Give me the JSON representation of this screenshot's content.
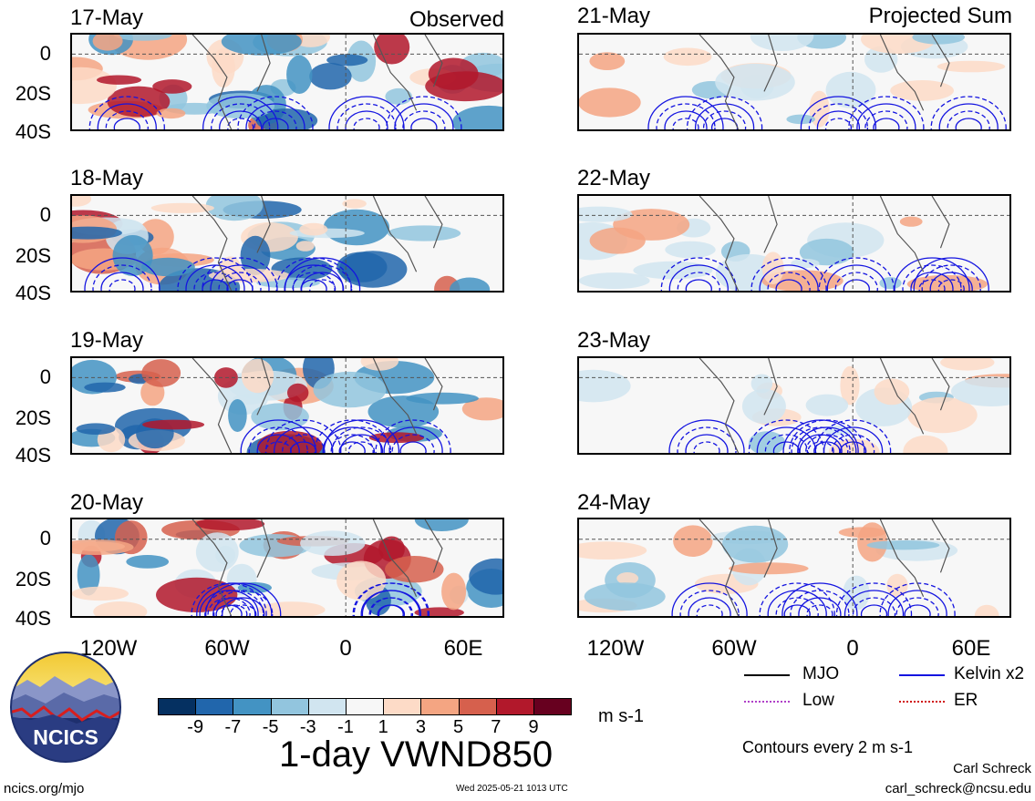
{
  "panels_left": {
    "corner_label": "Observed",
    "dates": [
      "17-May",
      "18-May",
      "19-May",
      "20-May"
    ]
  },
  "panels_right": {
    "corner_label": "Projected Sum",
    "dates": [
      "21-May",
      "22-May",
      "23-May",
      "24-May"
    ]
  },
  "y_ticks": [
    "0",
    "20S",
    "40S"
  ],
  "x_ticks": [
    "120W",
    "60W",
    "0",
    "60E"
  ],
  "colorbar": {
    "labels": [
      "-9",
      "-7",
      "-5",
      "-3",
      "-1",
      "1",
      "3",
      "5",
      "7",
      "9"
    ],
    "colors": [
      "#053061",
      "#2166ac",
      "#4393c3",
      "#92c5de",
      "#d1e5f0",
      "#f7f7f7",
      "#fddbc7",
      "#f4a582",
      "#d6604d",
      "#b2182b",
      "#67001f"
    ],
    "units": "m s-1"
  },
  "title": "1-day VWND850",
  "legend": {
    "items": [
      {
        "label": "MJO",
        "color": "#000000",
        "style": "solid"
      },
      {
        "label": "Kelvin x2",
        "color": "#1414e0",
        "style": "solid"
      },
      {
        "label": "Low",
        "color": "#b040c8",
        "style": "dotted"
      },
      {
        "label": "ER",
        "color": "#d01010",
        "style": "dotted"
      }
    ],
    "contour_note": "Contours every 2 m s-1"
  },
  "logo": {
    "text": "NCICS"
  },
  "footer": {
    "left": "ncics.org/mjo",
    "center": "Wed 2025-05-21 1013 UTC",
    "author": "Carl Schreck",
    "email": "carl_schreck@ncsu.edu"
  }
}
